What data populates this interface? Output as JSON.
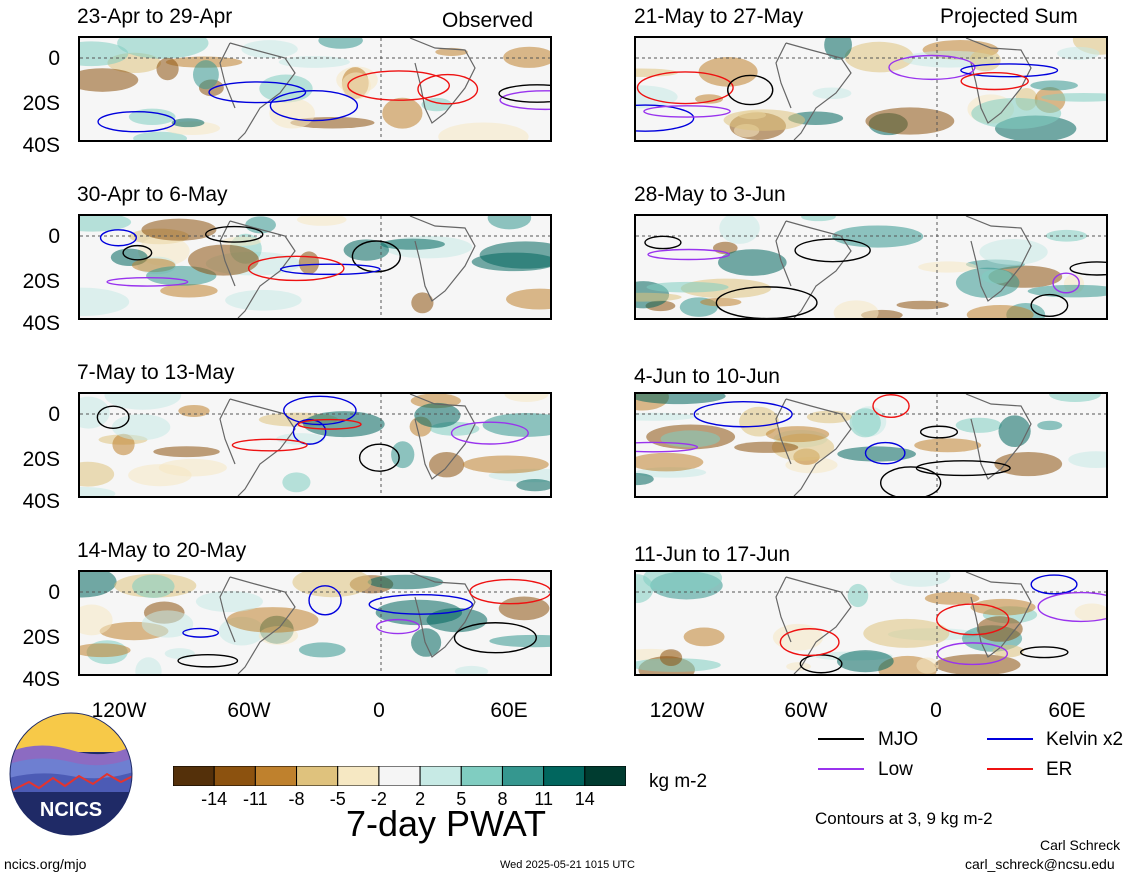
{
  "panels_left": [
    {
      "title": "23-Apr to 29-Apr",
      "tag": "Observed"
    },
    {
      "title": "30-Apr to 6-May",
      "tag": ""
    },
    {
      "title": "7-May to 13-May",
      "tag": ""
    },
    {
      "title": "14-May to 20-May",
      "tag": ""
    }
  ],
  "panels_right": [
    {
      "title": "21-May to 27-May",
      "tag": "Projected Sum"
    },
    {
      "title": "28-May to 3-Jun",
      "tag": ""
    },
    {
      "title": "4-Jun to 10-Jun",
      "tag": ""
    },
    {
      "title": "11-Jun to 17-Jun",
      "tag": ""
    }
  ],
  "y_ticks": [
    "0",
    "20S",
    "40S"
  ],
  "x_ticks": [
    "120W",
    "60W",
    "0",
    "60E"
  ],
  "legend": {
    "mjo": "MJO",
    "kelvin": "Kelvin x2",
    "low": "Low",
    "er": "ER",
    "colors": {
      "mjo": "#000000",
      "kelvin": "#0000dd",
      "low": "#9933ee",
      "er": "#ee1111"
    }
  },
  "colorbar": {
    "labels": [
      "-14",
      "-11",
      "-8",
      "-5",
      "-2",
      "2",
      "5",
      "8",
      "11",
      "14"
    ],
    "colors": [
      "#54300a",
      "#8c520f",
      "#bf812d",
      "#dfc27d",
      "#f6e8c3",
      "#f5f5f5",
      "#c7eae5",
      "#80cdc1",
      "#35978f",
      "#01665e",
      "#003c30"
    ],
    "units": "kg m-2",
    "title": "7-day PWAT"
  },
  "contours_note": "Contours at 3, 9 kg m-2",
  "logo_text": "NCICS",
  "footer": {
    "url": "ncics.org/mjo",
    "timestamp": "Wed 2025-05-21 1015 UTC",
    "author": "Carl Schreck",
    "email": "carl_schreck@ncsu.edu"
  }
}
